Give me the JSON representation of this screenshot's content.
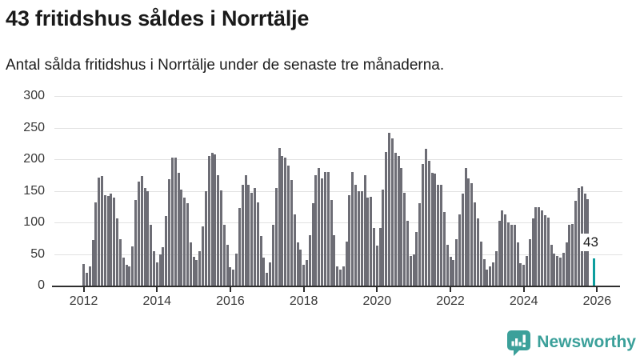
{
  "header": {
    "title": "43 fritidshus såldes i Norrtälje",
    "subtitle": "Antal sålda fritidshus i Norrtälje under de senaste tre månaderna."
  },
  "chart_data": {
    "type": "bar",
    "title": "43 fritidshus såldes i Norrtälje",
    "subtitle": "Antal sålda fritidshus i Norrtälje under de senaste tre månaderna.",
    "x_unit": "month",
    "x_start": "2012-01",
    "x_end": "2025-12",
    "x_tick_labels": [
      "2012",
      "2014",
      "2016",
      "2018",
      "2020",
      "2022",
      "2024",
      "2026"
    ],
    "y_ticks": [
      300,
      250,
      200,
      150,
      100,
      50,
      0
    ],
    "ylim": [
      0,
      300
    ],
    "grid": "horizontal",
    "legend": "none",
    "bar_color": "#6d6d75",
    "highlight_color": "#0d9e9e",
    "annotation": {
      "text": "43",
      "applies_to": "last-bar"
    },
    "values": [
      34,
      20,
      31,
      72,
      132,
      171,
      173,
      143,
      142,
      145,
      139,
      106,
      74,
      44,
      33,
      31,
      62,
      135,
      164,
      173,
      155,
      149,
      96,
      55,
      37,
      50,
      61,
      110,
      168,
      203,
      202,
      178,
      152,
      139,
      130,
      68,
      46,
      41,
      54,
      94,
      150,
      205,
      210,
      208,
      175,
      151,
      96,
      65,
      29,
      25,
      51,
      123,
      160,
      175,
      159,
      147,
      154,
      132,
      78,
      44,
      20,
      37,
      96,
      154,
      218,
      205,
      202,
      190,
      167,
      113,
      68,
      57,
      33,
      40,
      80,
      130,
      175,
      186,
      169,
      180,
      180,
      136,
      80,
      31,
      25,
      31,
      70,
      143,
      180,
      160,
      150,
      149,
      175,
      139,
      141,
      91,
      63,
      91,
      152,
      212,
      242,
      233,
      210,
      205,
      186,
      147,
      102,
      47,
      50,
      85,
      130,
      192,
      216,
      197,
      179,
      177,
      160,
      160,
      117,
      65,
      46,
      40,
      74,
      113,
      145,
      186,
      169,
      162,
      132,
      106,
      70,
      42,
      25,
      31,
      37,
      55,
      102,
      119,
      113,
      100,
      96,
      96,
      68,
      35,
      33,
      47,
      74,
      106,
      124,
      124,
      119,
      111,
      107,
      64,
      51,
      47,
      44,
      52,
      68,
      96,
      98,
      134,
      154,
      157,
      146,
      137,
      null,
      43
    ]
  },
  "branding": {
    "logo_text": "Newsworthy",
    "logo_color": "#3ba09a",
    "logo_icon": "bar-chart-speech-bubble-icon"
  }
}
